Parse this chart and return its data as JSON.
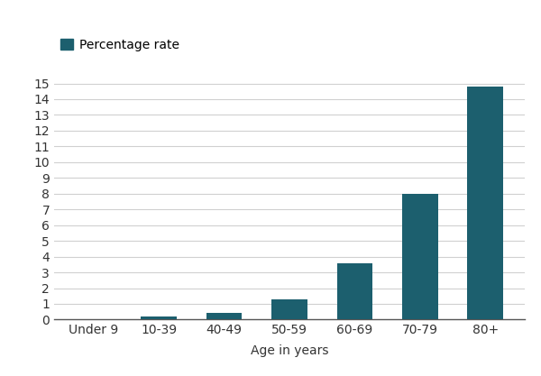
{
  "categories": [
    "Under 9",
    "10-39",
    "40-49",
    "50-59",
    "60-69",
    "70-79",
    "80+"
  ],
  "values": [
    0.0,
    0.2,
    0.4,
    1.3,
    3.6,
    8.0,
    14.8
  ],
  "bar_color": "#1c5f6e",
  "legend_label": "Percentage rate",
  "xlabel": "Age in years",
  "ylim": [
    0,
    16
  ],
  "yticks": [
    0,
    1,
    2,
    3,
    4,
    5,
    6,
    7,
    8,
    9,
    10,
    11,
    12,
    13,
    14,
    15
  ],
  "background_color": "#ffffff",
  "grid_color": "#d0d0d0",
  "bar_width": 0.55,
  "legend_fontsize": 10,
  "tick_fontsize": 10,
  "xlabel_fontsize": 10
}
